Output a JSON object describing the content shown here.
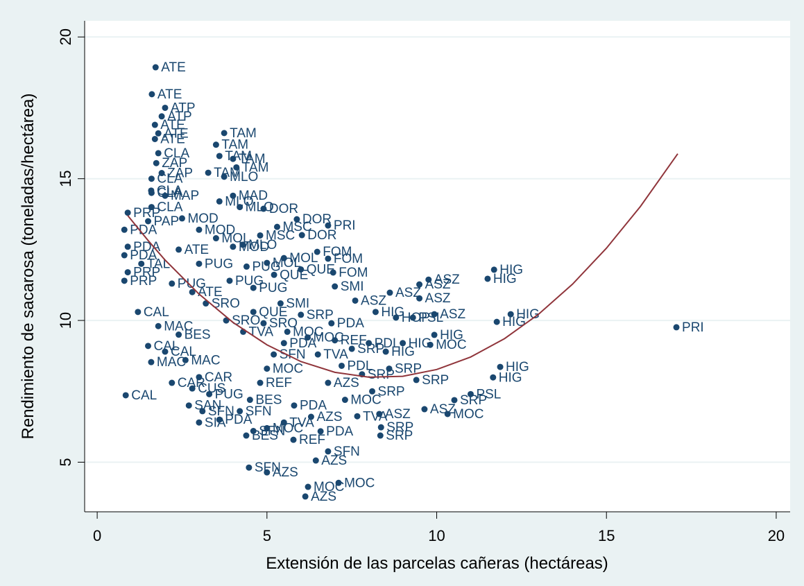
{
  "chart_data": {
    "type": "scatter",
    "x_label": "Extensión de las parcelas cañeras (hectáreas)",
    "y_label": "Rendimiento de sacarosa (toneladas/hectárea)",
    "xlim": [
      -0.37,
      20.41
    ],
    "ylim": [
      3.25,
      20.57
    ],
    "xticks": [
      0,
      5,
      10,
      15,
      20
    ],
    "yticks": [
      5,
      10,
      15,
      20
    ],
    "grid": true,
    "series": [
      {
        "color": "#1a476f",
        "x": [
          1.72,
          1.61,
          3.74,
          3.5,
          4.9,
          5.88,
          6.8,
          6.03,
          4.29,
          6.48,
          6.8,
          5.0,
          6.95,
          9.76,
          9.49,
          11.69,
          11.5,
          9.49,
          8.62,
          12.18,
          11.77,
          9.93,
          9.93,
          9.81,
          17.06,
          11.87,
          11.66,
          11.0,
          10.52,
          10.32,
          9.64,
          8.36,
          8.34,
          8.31,
          0.84,
          6.58,
          5.78,
          6.8,
          6.44,
          5.0,
          4.47,
          7.11,
          6.21,
          6.13,
          4.39,
          7.66,
          9.4,
          1.59,
          1.59,
          1.74,
          3.27,
          3.74,
          4.6,
          5.21,
          0.9,
          0.8,
          0.9,
          0.8,
          0.9,
          0.8,
          1.3,
          1.5,
          1.6,
          2.0,
          2.5,
          3.0,
          3.5,
          4.0,
          2.2,
          2.8,
          3.2,
          1.2,
          1.8,
          2.4,
          1.5,
          2.0,
          2.6,
          3.0,
          2.2,
          2.8,
          3.3,
          2.7,
          3.1,
          3.0,
          3.6,
          4.2,
          4.5,
          4.8,
          5.0,
          5.2,
          5.5,
          4.3,
          3.8,
          4.6,
          5.4,
          6.0,
          6.2,
          6.5,
          7.0,
          7.5,
          8.0,
          8.5,
          7.2,
          7.8,
          8.6,
          6.8,
          7.3,
          8.1,
          5.8,
          6.3,
          5.0,
          4.6,
          5.5,
          7.6,
          8.2,
          8.8,
          9.3,
          7.0,
          6.0,
          5.5,
          4.4,
          3.9,
          4.8,
          5.3,
          4.2,
          3.6,
          4.0,
          1.7,
          1.8,
          1.9,
          2.0,
          1.7,
          1.8,
          1.6,
          1.9,
          3.6,
          4.1,
          4.0,
          1.6,
          2.4,
          3.0,
          4.9,
          5.6,
          6.9,
          9.0
        ],
        "values": [
          18.93,
          17.98,
          16.61,
          16.2,
          13.94,
          13.57,
          13.35,
          13.01,
          12.67,
          12.42,
          12.18,
          12.03,
          11.69,
          11.44,
          11.27,
          11.79,
          11.47,
          10.78,
          10.98,
          10.22,
          9.95,
          10.22,
          9.49,
          9.14,
          9.76,
          8.36,
          7.99,
          7.4,
          7.19,
          6.7,
          6.87,
          6.23,
          5.94,
          6.7,
          7.36,
          6.09,
          5.79,
          5.38,
          5.06,
          4.64,
          4.81,
          4.27,
          4.13,
          3.79,
          5.94,
          6.62,
          7.9,
          8.53,
          14.58,
          15.55,
          15.21,
          15.07,
          11.15,
          11.61,
          13.8,
          13.2,
          12.6,
          12.3,
          11.7,
          11.4,
          12.0,
          13.5,
          14.0,
          14.4,
          13.6,
          13.2,
          12.9,
          12.6,
          11.3,
          11.0,
          10.6,
          10.3,
          9.8,
          9.5,
          9.1,
          8.9,
          8.6,
          8.0,
          7.8,
          7.6,
          7.4,
          7.0,
          6.8,
          6.4,
          6.5,
          6.8,
          7.2,
          7.8,
          8.3,
          8.8,
          9.2,
          9.6,
          10.0,
          10.3,
          10.6,
          10.2,
          9.4,
          8.8,
          9.3,
          9.0,
          9.2,
          8.9,
          8.4,
          8.1,
          8.3,
          7.8,
          7.2,
          7.5,
          7.0,
          6.6,
          6.2,
          6.1,
          6.4,
          10.7,
          10.3,
          10.1,
          10.1,
          11.2,
          11.8,
          12.2,
          11.9,
          11.4,
          13.0,
          13.3,
          14.0,
          14.2,
          14.4,
          16.9,
          16.6,
          17.2,
          17.5,
          16.4,
          15.9,
          15.0,
          15.2,
          15.8,
          15.4,
          15.7,
          14.5,
          12.5,
          12.0,
          9.9,
          9.6,
          9.9,
          9.2
        ],
        "labels": [
          "ATE",
          "ATE",
          "TAM",
          "TAM",
          "DOR",
          "DOR",
          "PRI",
          "DOR",
          "MLO",
          "FOM",
          "FOM",
          "MOL",
          "FOM",
          "ASZ",
          "ASZ",
          "HIG",
          "HIG",
          "ASZ",
          "ASZ",
          "HIG",
          "HIG",
          "ASZ",
          "HIG",
          "MOC",
          "PRI",
          "HIG",
          "HIG",
          "PSL",
          "SRP",
          "MOC",
          "ASZ",
          "SRP",
          "SRP",
          "ASZ",
          "CAL",
          "PDA",
          "REF",
          "SFN",
          "AZS",
          "AZS",
          "SFN",
          "MOC",
          "MOC",
          "AZS",
          "BES",
          "TVA",
          "SRP",
          "MAC",
          "CLA",
          "ZAP",
          "TAM",
          "MLO",
          "PUG",
          "QUE",
          "PRP",
          "PDA",
          "PDA",
          "PDA",
          "PRP",
          "PRP",
          "TAL",
          "PAP",
          "CLA",
          "MAP",
          "MOD",
          "MOD",
          "MOL",
          "MOD",
          "PUG",
          "ATE",
          "SRO",
          "CAL",
          "MAC",
          "BES",
          "CAL",
          "CAL",
          "MAC",
          "CAR",
          "CAR",
          "CUS",
          "PUG",
          "SAN",
          "SFN",
          "SIA",
          "PDA",
          "SFN",
          "BES",
          "REF",
          "MOC",
          "SFN",
          "PDA",
          "TVA",
          "SRO",
          "QUE",
          "SMI",
          "SRP",
          "MOC",
          "TVA",
          "REF",
          "SRP",
          "PDL",
          "HIG",
          "PDL",
          "SRP",
          "SRP",
          "AZS",
          "MOC",
          "SRP",
          "PDA",
          "AZS",
          "MOC",
          "SFN",
          "TVA",
          "ASZ",
          "HIG",
          "HOP",
          "PSL",
          "SMI",
          "QUE",
          "MOL",
          "PUG",
          "PUG",
          "MSC",
          "MSC",
          "MLO",
          "MLO",
          "MAD",
          "ATE",
          "ATE",
          "ATP",
          "ATP",
          "ATE",
          "CLA",
          "CLA",
          "ZAP",
          "TAM",
          "TAM",
          "TAM",
          "CLA",
          "ATE",
          "PUG",
          "SRO",
          "MOC",
          "PDA",
          "HIG"
        ]
      }
    ],
    "fit_line": {
      "color": "#90353b",
      "x": [
        0.9,
        1.5,
        2,
        3,
        4,
        5,
        6,
        7,
        8,
        9,
        10,
        11,
        12,
        13,
        14,
        15,
        16,
        17.1
      ],
      "values": [
        13.7,
        12.82,
        12.13,
        10.93,
        9.93,
        9.14,
        8.55,
        8.17,
        8.0,
        8.03,
        8.27,
        8.71,
        9.36,
        10.22,
        11.28,
        12.55,
        14.02,
        15.88
      ]
    }
  }
}
